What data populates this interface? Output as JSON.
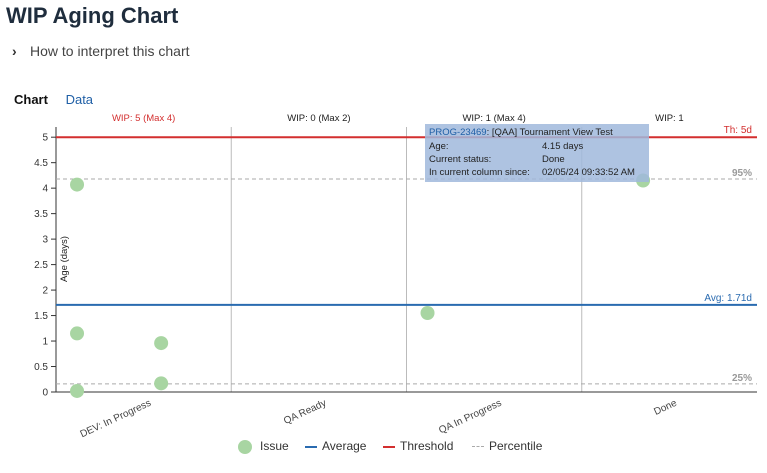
{
  "page": {
    "title": "WIP Aging Chart",
    "interpret_label": "How to interpret this chart",
    "tabs": [
      "Chart",
      "Data"
    ]
  },
  "chart_data": {
    "type": "scatter",
    "ylabel": "Age (days)",
    "ylim": [
      0,
      5.2
    ],
    "y_ticks": [
      0,
      0.5,
      1,
      1.5,
      2,
      2.5,
      3,
      3.5,
      4,
      4.5,
      5
    ],
    "y_tick_labels": [
      "0",
      "0.5",
      "1",
      "1.5",
      "2",
      "2.5",
      "3",
      "3.5",
      "4",
      "4.5",
      "5"
    ],
    "columns": [
      {
        "name": "DEV: In Progress",
        "wip": "WIP: 5 (Max 4)",
        "over_limit": true
      },
      {
        "name": "QA Ready",
        "wip": "WIP: 0 (Max 2)",
        "over_limit": false
      },
      {
        "name": "QA In Progress",
        "wip": "WIP: 1 (Max 4)",
        "over_limit": false
      },
      {
        "name": "Done",
        "wip": "WIP: 1",
        "over_limit": false
      }
    ],
    "points": [
      {
        "column": 0,
        "offset": 0.12,
        "age": 4.07
      },
      {
        "column": 0,
        "offset": 0.12,
        "age": 1.15
      },
      {
        "column": 0,
        "offset": 0.12,
        "age": 0.02
      },
      {
        "column": 0,
        "offset": 0.6,
        "age": 0.96
      },
      {
        "column": 0,
        "offset": 0.6,
        "age": 0.17
      },
      {
        "column": 2,
        "offset": 0.12,
        "age": 1.55
      },
      {
        "column": 3,
        "offset": 0.35,
        "age": 4.15
      }
    ],
    "threshold": {
      "value": 5,
      "label": "Th: 5d",
      "color": "#d32f2f"
    },
    "average": {
      "value": 1.71,
      "label": "Avg: 1.71d",
      "color": "#2a6bb0"
    },
    "percentiles": [
      {
        "value": 4.18,
        "label": "95%"
      },
      {
        "value": 0.16,
        "label": "25%"
      }
    ],
    "point_color": "#a8d5a2",
    "legend": [
      {
        "name": "Issue",
        "kind": "dot"
      },
      {
        "name": "Average",
        "kind": "line",
        "color": "#2a6bb0"
      },
      {
        "name": "Threshold",
        "kind": "line",
        "color": "#d32f2f"
      },
      {
        "name": "Percentile",
        "kind": "dash",
        "color": "#aaaaaa"
      }
    ],
    "tooltip": {
      "key": "PROG-23469",
      "summary": ": [QAA] Tournament View Test",
      "rows": [
        {
          "label": "Age:",
          "value": "4.15 days"
        },
        {
          "label": "Current status:",
          "value": "Done"
        },
        {
          "label": "In current column since:",
          "value": "02/05/24 09:33:52 AM"
        }
      ]
    }
  }
}
